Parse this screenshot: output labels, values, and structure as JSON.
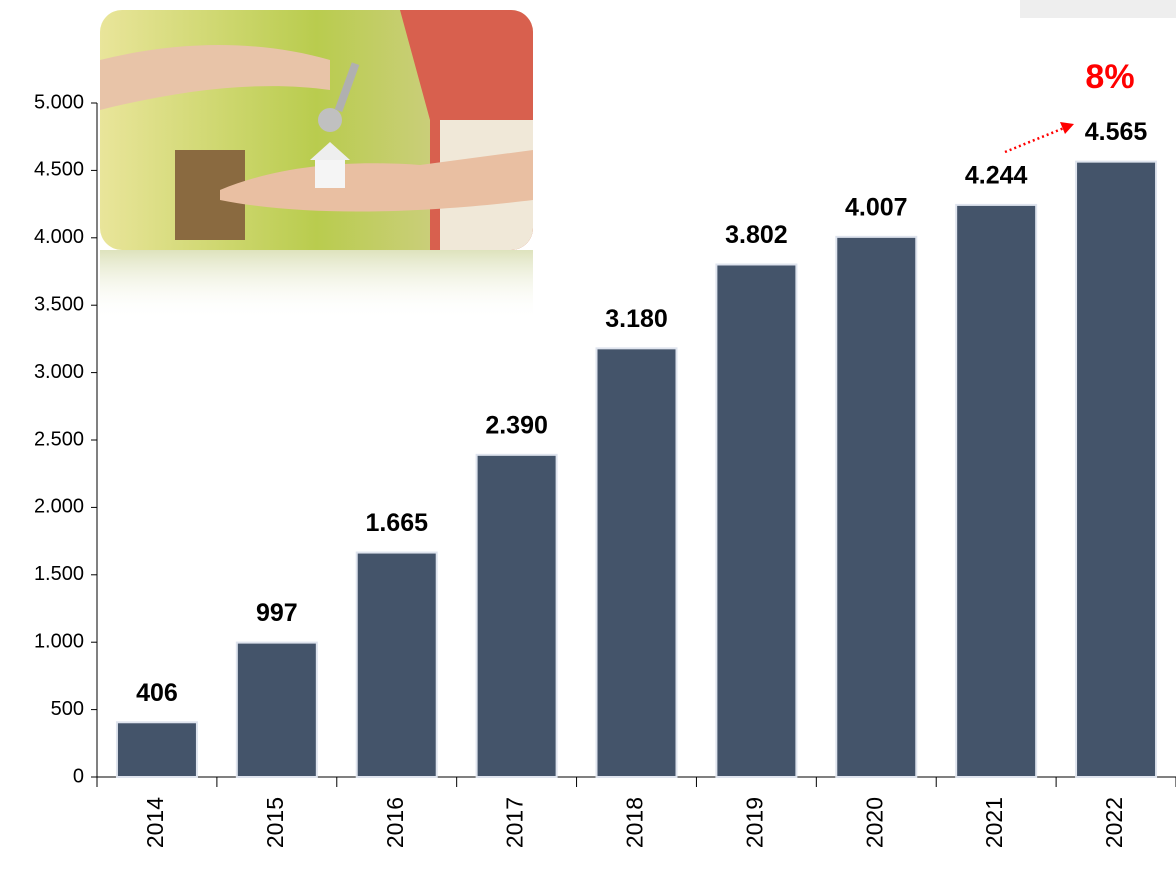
{
  "chart_data": {
    "type": "bar",
    "categories": [
      "2014",
      "2015",
      "2016",
      "2017",
      "2018",
      "2019",
      "2020",
      "2021",
      "2022"
    ],
    "values": [
      406,
      997,
      1665,
      2390,
      3180,
      3802,
      4007,
      4244,
      4565
    ],
    "value_labels": [
      "406",
      "997",
      "1.665",
      "2.390",
      "3.180",
      "3.802",
      "4.007",
      "4.244",
      "4.565"
    ],
    "color": "#44546a",
    "ylim": [
      0,
      5000
    ],
    "yticks": [
      0,
      500,
      {
        "value": 1000,
        "label": "1.000"
      },
      {
        "value": 1500,
        "label": "1.500"
      },
      {
        "value": 2000,
        "label": "2.000"
      },
      {
        "value": 2500,
        "label": "2.500"
      },
      {
        "value": 3000,
        "label": "3.000"
      },
      {
        "value": 3500,
        "label": "3.500"
      },
      {
        "value": 4000,
        "label": "4.000"
      },
      {
        "value": 4500,
        "label": "4.500"
      },
      {
        "value": 5000,
        "label": "5.000"
      }
    ],
    "annotation": "8%",
    "annotation_color": "#ff0000"
  }
}
